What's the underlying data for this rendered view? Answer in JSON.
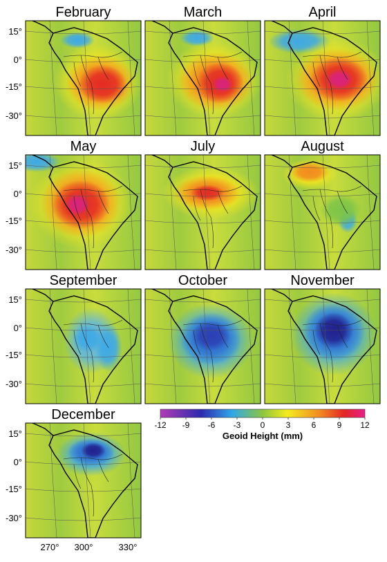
{
  "panels": [
    {
      "title": "February"
    },
    {
      "title": "March"
    },
    {
      "title": "April"
    },
    {
      "title": "May"
    },
    {
      "title": "July"
    },
    {
      "title": "August"
    },
    {
      "title": "September"
    },
    {
      "title": "October"
    },
    {
      "title": "November"
    },
    {
      "title": "December"
    }
  ],
  "lat_labels": [
    "15°",
    "0°",
    "-15°",
    "-30°"
  ],
  "lon_labels": [
    "270°",
    "300°",
    "330°"
  ],
  "colorbar": {
    "ticks": [
      -12,
      -9,
      -6,
      -3,
      0,
      3,
      6,
      9,
      12
    ],
    "label": "Geoid Height (mm)"
  }
}
